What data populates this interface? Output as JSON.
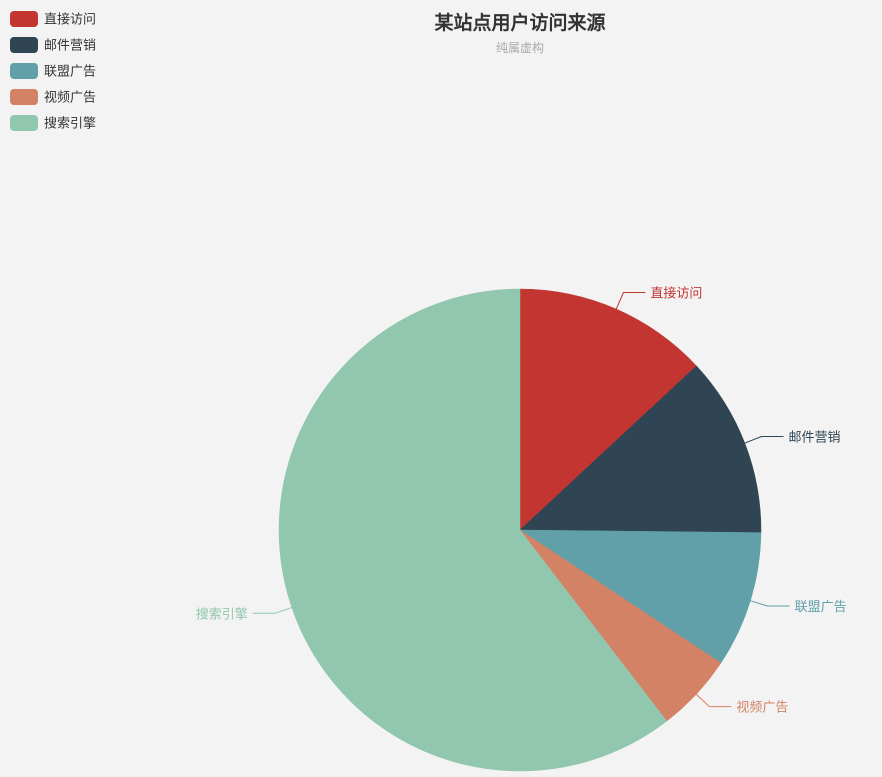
{
  "chart_data": {
    "type": "pie",
    "title": "某站点用户访问来源",
    "subtitle": "纯属虚构",
    "legend_position": "top-left",
    "categories": [
      "直接访问",
      "邮件营销",
      "联盟广告",
      "视频广告",
      "搜索引擎"
    ],
    "values": [
      335,
      310,
      234,
      135,
      1548
    ],
    "colors": [
      "#c23531",
      "#2f4554",
      "#61a0a8",
      "#d48265",
      "#91c7ae"
    ],
    "start_angle_deg": 90,
    "direction": "clockwise"
  }
}
